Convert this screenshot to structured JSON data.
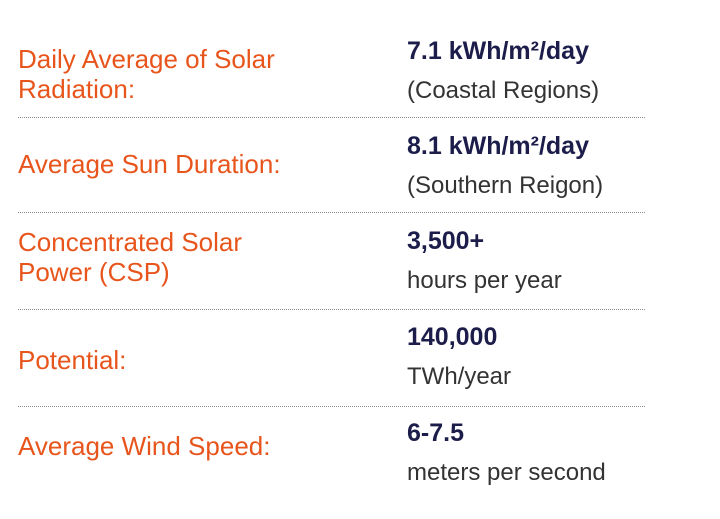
{
  "stats": [
    {
      "label": "Daily Average of Solar Radiation:",
      "value": "7.1 kWh/m²/day",
      "detail": "(Coastal Regions)"
    },
    {
      "label": "Average Sun Duration:",
      "value": "8.1 kWh/m²/day",
      "detail": "(Southern Reigon)"
    },
    {
      "label": "Concentrated Solar Power (CSP)",
      "value": "3,500+",
      "detail": "hours per year"
    },
    {
      "label": "Potential:",
      "value": "140,000",
      "detail": "TWh/year"
    },
    {
      "label": "Average Wind Speed:",
      "value": "6-7.5",
      "detail": "meters per second"
    }
  ],
  "colors": {
    "label": "#e8551c",
    "value": "#1c1d4a",
    "detail": "#333333",
    "divider": "#8a8a8a"
  }
}
